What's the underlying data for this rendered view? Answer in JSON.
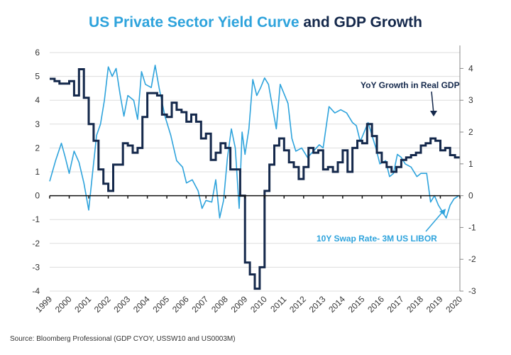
{
  "chart_data": {
    "type": "line",
    "title_part1": "US Private Sector Yield Curve",
    "title_part2": "and GDP Growth",
    "source": "Source: Bloomberg Professional (GDP CYOY, USSW10 and US0003M)",
    "x_ticks": [
      "1999",
      "2000",
      "2001",
      "2002",
      "2003",
      "2004",
      "2005",
      "2006",
      "2007",
      "2008",
      "2009",
      "2010",
      "2011",
      "2012",
      "2013",
      "2014",
      "2015",
      "2016",
      "2017",
      "2018",
      "2019",
      "2020"
    ],
    "xlim": [
      1999,
      2020
    ],
    "left_axis": {
      "ylim": [
        -4,
        6
      ],
      "ticks": [
        6,
        5,
        4,
        3,
        2,
        1,
        0,
        -1,
        -2,
        -3,
        -4
      ]
    },
    "right_axis": {
      "ylim": [
        -3,
        4
      ],
      "ticks": [
        4,
        3,
        2,
        1,
        0,
        -1,
        -2,
        -3
      ]
    },
    "grid": true,
    "colors": {
      "gdp": "#14284b",
      "swap": "#2ea3dc",
      "grid": "#dddddd"
    },
    "series": [
      {
        "name": "YoY Growth in Real GDP",
        "axis": "left",
        "style": "step",
        "start": 1999,
        "frequency": "quarterly",
        "values": [
          4.9,
          4.8,
          4.7,
          4.7,
          4.8,
          4.2,
          5.3,
          4.1,
          3.0,
          2.3,
          1.1,
          0.5,
          0.2,
          1.3,
          1.3,
          2.2,
          2.1,
          1.8,
          2.0,
          3.3,
          4.3,
          4.3,
          4.2,
          3.4,
          3.3,
          3.9,
          3.6,
          3.5,
          3.1,
          3.4,
          3.1,
          2.4,
          2.6,
          1.5,
          1.8,
          2.2,
          2.0,
          1.1,
          1.1,
          0.0,
          -2.8,
          -3.3,
          -3.9,
          -3.0,
          0.2,
          1.3,
          2.1,
          2.4,
          1.9,
          1.4,
          1.2,
          0.7,
          1.2,
          2.0,
          1.8,
          1.9,
          1.1,
          1.2,
          1.0,
          1.4,
          1.9,
          1.0,
          2.0,
          2.3,
          2.2,
          3.0,
          2.5,
          1.8,
          1.4,
          1.2,
          1.0,
          1.2,
          1.5,
          1.6,
          1.7,
          1.8,
          2.1,
          2.2,
          2.4,
          2.3,
          1.9,
          2.0,
          1.7,
          1.6
        ]
      },
      {
        "name": "10Y Swap Rate- 3M US LIBOR",
        "axis": "right",
        "x": [
          1999.0,
          1999.3,
          1999.6,
          1999.8,
          2000.0,
          2000.25,
          2000.5,
          2000.75,
          2001.0,
          2001.2,
          2001.4,
          2001.6,
          2001.8,
          2002.0,
          2002.2,
          2002.4,
          2002.6,
          2002.8,
          2003.0,
          2003.3,
          2003.5,
          2003.7,
          2003.9,
          2004.2,
          2004.4,
          2004.6,
          2004.9,
          2005.2,
          2005.5,
          2005.8,
          2006.0,
          2006.3,
          2006.6,
          2006.8,
          2007.0,
          2007.3,
          2007.5,
          2007.7,
          2007.9,
          2008.1,
          2008.3,
          2008.5,
          2008.7,
          2008.85,
          2009.0,
          2009.2,
          2009.4,
          2009.6,
          2009.8,
          2010.0,
          2010.2,
          2010.4,
          2010.6,
          2010.8,
          2011.0,
          2011.2,
          2011.4,
          2011.6,
          2011.9,
          2012.2,
          2012.5,
          2012.8,
          2013.0,
          2013.3,
          2013.6,
          2013.9,
          2014.2,
          2014.5,
          2014.7,
          2014.9,
          2015.1,
          2015.3,
          2015.5,
          2015.7,
          2015.9,
          2016.2,
          2016.4,
          2016.6,
          2016.8,
          2017.0,
          2017.2,
          2017.5,
          2017.8,
          2018.0,
          2018.3,
          2018.5,
          2018.7,
          2018.9,
          2019.1,
          2019.3,
          2019.5,
          2019.7,
          2019.95
        ],
        "values": [
          0.45,
          1.1,
          1.65,
          1.2,
          0.7,
          1.4,
          1.05,
          0.4,
          -0.45,
          0.75,
          1.9,
          2.25,
          3.0,
          4.05,
          3.75,
          4.0,
          3.2,
          2.5,
          3.15,
          3.0,
          2.4,
          3.9,
          3.5,
          3.4,
          4.1,
          3.4,
          2.5,
          1.9,
          1.1,
          0.9,
          0.4,
          0.5,
          0.15,
          -0.4,
          -0.15,
          -0.2,
          0.5,
          -0.7,
          -0.15,
          1.2,
          2.1,
          1.5,
          -0.4,
          2.0,
          1.3,
          2.1,
          3.65,
          3.15,
          3.4,
          3.7,
          3.5,
          2.8,
          2.1,
          3.5,
          3.2,
          2.9,
          1.8,
          1.4,
          1.5,
          1.2,
          1.4,
          1.6,
          1.5,
          2.8,
          2.6,
          2.7,
          2.6,
          2.3,
          2.2,
          1.7,
          2.0,
          2.3,
          1.9,
          1.5,
          1.0,
          1.1,
          0.6,
          0.7,
          1.3,
          1.2,
          1.0,
          0.9,
          0.6,
          0.7,
          0.7,
          -0.2,
          0.0,
          -0.3,
          -0.5,
          -0.7,
          -0.3,
          -0.1,
          0.0
        ]
      }
    ],
    "annotations": [
      "YoY Growth in Real GDP",
      "10Y Swap Rate- 3M US LIBOR"
    ]
  }
}
